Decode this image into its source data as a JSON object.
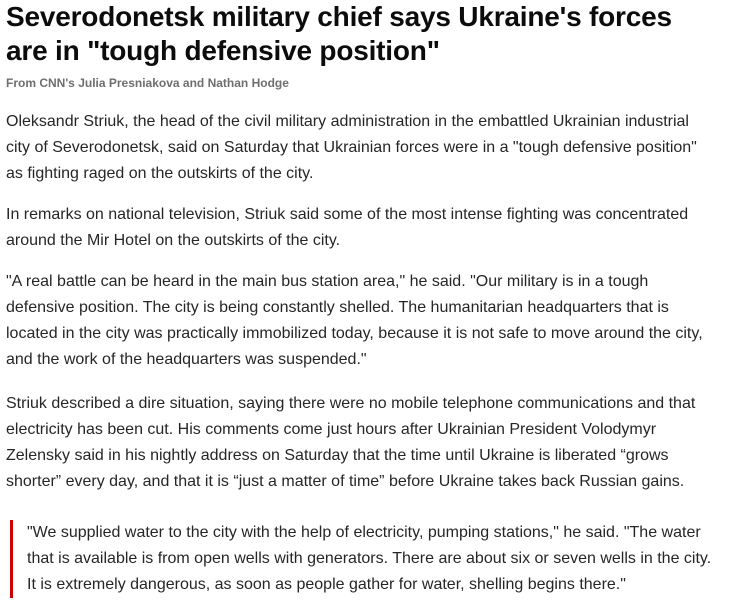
{
  "article": {
    "title": [
      "Severodonetsk military chief says Ukraine's forces",
      "are in \"tough defensive position\""
    ],
    "byline": "From CNN's Julia Presniakova and Nathan Hodge",
    "paragraphs": [
      [
        "Oleksandr Striuk, the head of the civil military administration in the embattled Ukrainian industrial",
        "city of Severodonetsk, said on Saturday that Ukrainian forces were in a \"tough defensive position\"",
        "as fighting raged on the outskirts of the city."
      ],
      [
        "In remarks on national television, Striuk said some of the most intense fighting was concentrated",
        "around the Mir Hotel on the outskirts of the city."
      ],
      [
        "\"A real battle can be heard in the main bus station area,\" he said. \"Our military is in a tough",
        "defensive position. The city is being constantly shelled. The humanitarian headquarters that is",
        "located in the city was practically immobilized today, because it is not safe to move around the city,",
        "and the work of the headquarters was suspended.\""
      ],
      [
        "Striuk described a dire situation, saying there were no mobile telephone communications and that",
        "electricity has been cut. His comments come just hours after Ukrainian President Volodymyr",
        "Zelensky said in his nightly address on Saturday that the time until Ukraine is liberated “grows",
        "shorter” every day, and that it is “just a matter of time” before Ukraine takes back Russian gains."
      ]
    ],
    "blockquote": [
      "\"We supplied water to the city with the help of electricity, pumping stations,\" he said. \"The water",
      "that is available is from open wells with generators. There are about six or seven wells in the city.",
      "It is extremely dangerous, as soon as people gather for water, shelling begins there.\""
    ]
  }
}
